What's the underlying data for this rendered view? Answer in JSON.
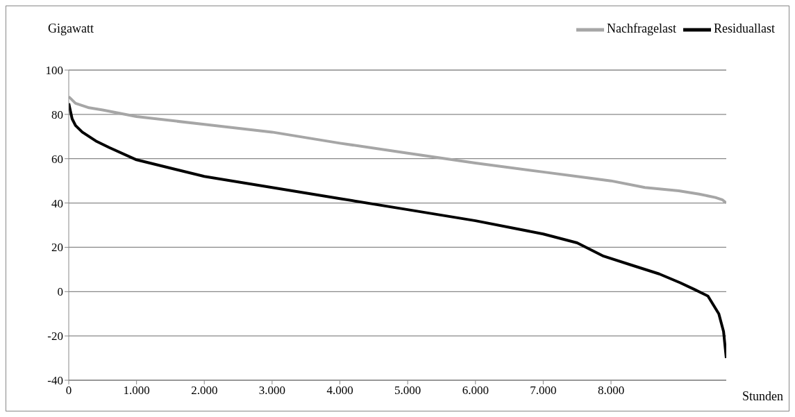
{
  "chart_data": {
    "type": "line",
    "ylabel": "Gigawatt",
    "xlabel": "Stunden",
    "xlim": [
      0,
      9700
    ],
    "xticks": [
      0,
      {
        "value": 1000,
        "label": "1.000"
      },
      {
        "value": 2000,
        "label": "2.000"
      },
      {
        "value": 3000,
        "label": "3.000"
      },
      {
        "value": 4000,
        "label": "4.000"
      },
      {
        "value": 5000,
        "label": "5.000"
      },
      {
        "value": 6000,
        "label": "6.000"
      },
      {
        "value": 7000,
        "label": "7.000"
      },
      {
        "value": 8000,
        "label": "8.000"
      }
    ],
    "ylim": [
      -40,
      100
    ],
    "yticks": [
      -40,
      -20,
      0,
      20,
      40,
      60,
      80,
      100
    ],
    "grid": "y",
    "legend": "top right",
    "marker": "none",
    "line_style": "solid",
    "series": [
      {
        "name": "Nachfragelast",
        "color": "#a6a6a6",
        "x": [
          0,
          100,
          300,
          500,
          1000,
          2000,
          3000,
          4000,
          5000,
          6000,
          7000,
          8000,
          8500,
          9000,
          9300,
          9540,
          9640,
          9700
        ],
        "values": [
          88,
          85,
          83,
          82,
          79,
          75.5,
          72,
          67,
          62.5,
          58,
          54,
          50,
          47,
          45.5,
          44,
          42.5,
          41.5,
          40
        ]
      },
      {
        "name": "Residuallast",
        "color": "#000000",
        "x": [
          0,
          50,
          100,
          200,
          400,
          600,
          1000,
          2000,
          3000,
          4000,
          5000,
          6000,
          7000,
          7500,
          7890,
          8300,
          8710,
          9020,
          9230,
          9430,
          9590,
          9660,
          9700
        ],
        "values": [
          85,
          78,
          75,
          72,
          68,
          65,
          59.5,
          52,
          47,
          42,
          37,
          32,
          26,
          22,
          16,
          12,
          8,
          4,
          1,
          -2,
          -10,
          -18,
          -30
        ]
      }
    ]
  }
}
